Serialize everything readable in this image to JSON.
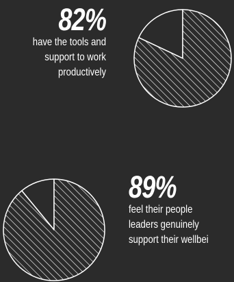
{
  "colors": {
    "background": "#2b2b2b",
    "foreground": "#ffffff"
  },
  "chart_data": [
    {
      "type": "pie",
      "title": "",
      "values": [
        82,
        18
      ],
      "labels": [
        "",
        ""
      ],
      "fill": [
        "hatched",
        "solid-background"
      ],
      "headline": "82%",
      "caption_lines": [
        "have the tools and",
        "support to work",
        "productively"
      ]
    },
    {
      "type": "pie",
      "title": "",
      "values": [
        89,
        11
      ],
      "labels": [
        "",
        ""
      ],
      "fill": [
        "hatched",
        "solid-background"
      ],
      "headline": "89%",
      "caption_lines": [
        "feel their people",
        "leaders genuinely",
        "support their wellbei"
      ]
    }
  ]
}
